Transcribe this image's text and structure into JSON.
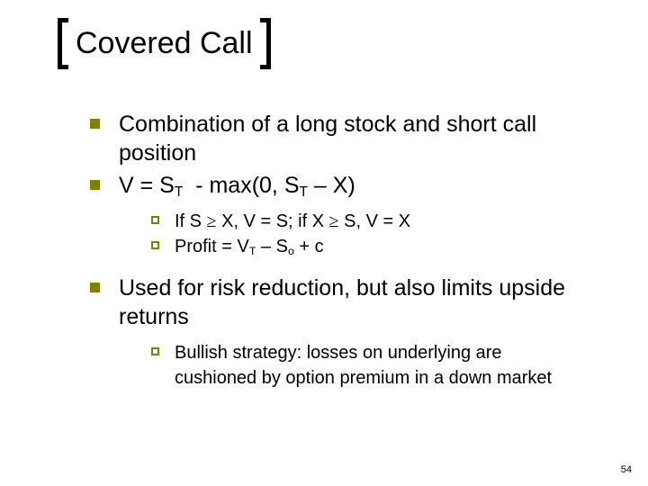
{
  "colors": {
    "text": "#000000",
    "background": "#ffffff",
    "bracket": "#000000",
    "bullet_level1_fill": "#808000",
    "bullet_level2_border": "#808000"
  },
  "typography": {
    "title_fontsize": 34,
    "level1_fontsize": 25,
    "level2_fontsize": 20,
    "pagenum_fontsize": 11,
    "font_family": "Arial"
  },
  "title": "Covered Call",
  "pageNumber": "54",
  "bullets": [
    {
      "text_html": "Combination of a long stock and short call position"
    },
    {
      "text_html": "V = S<sub>T</sub>&nbsp; - max(0, S<sub>T</sub> – X)",
      "children": [
        {
          "text_html": "If S <span class=\"geq\">≥</span> X, V = S; if X <span class=\"geq\">≥</span> S, V = X"
        },
        {
          "text_html": "Profit = V<sub>T</sub> – S<sub>o</sub> + c"
        }
      ]
    },
    {
      "gapBefore": true,
      "text_html": "Used for risk reduction, but also limits upside returns",
      "children": [
        {
          "text_html": "Bullish strategy: losses on underlying are cushioned by option premium in a down market"
        }
      ]
    }
  ]
}
